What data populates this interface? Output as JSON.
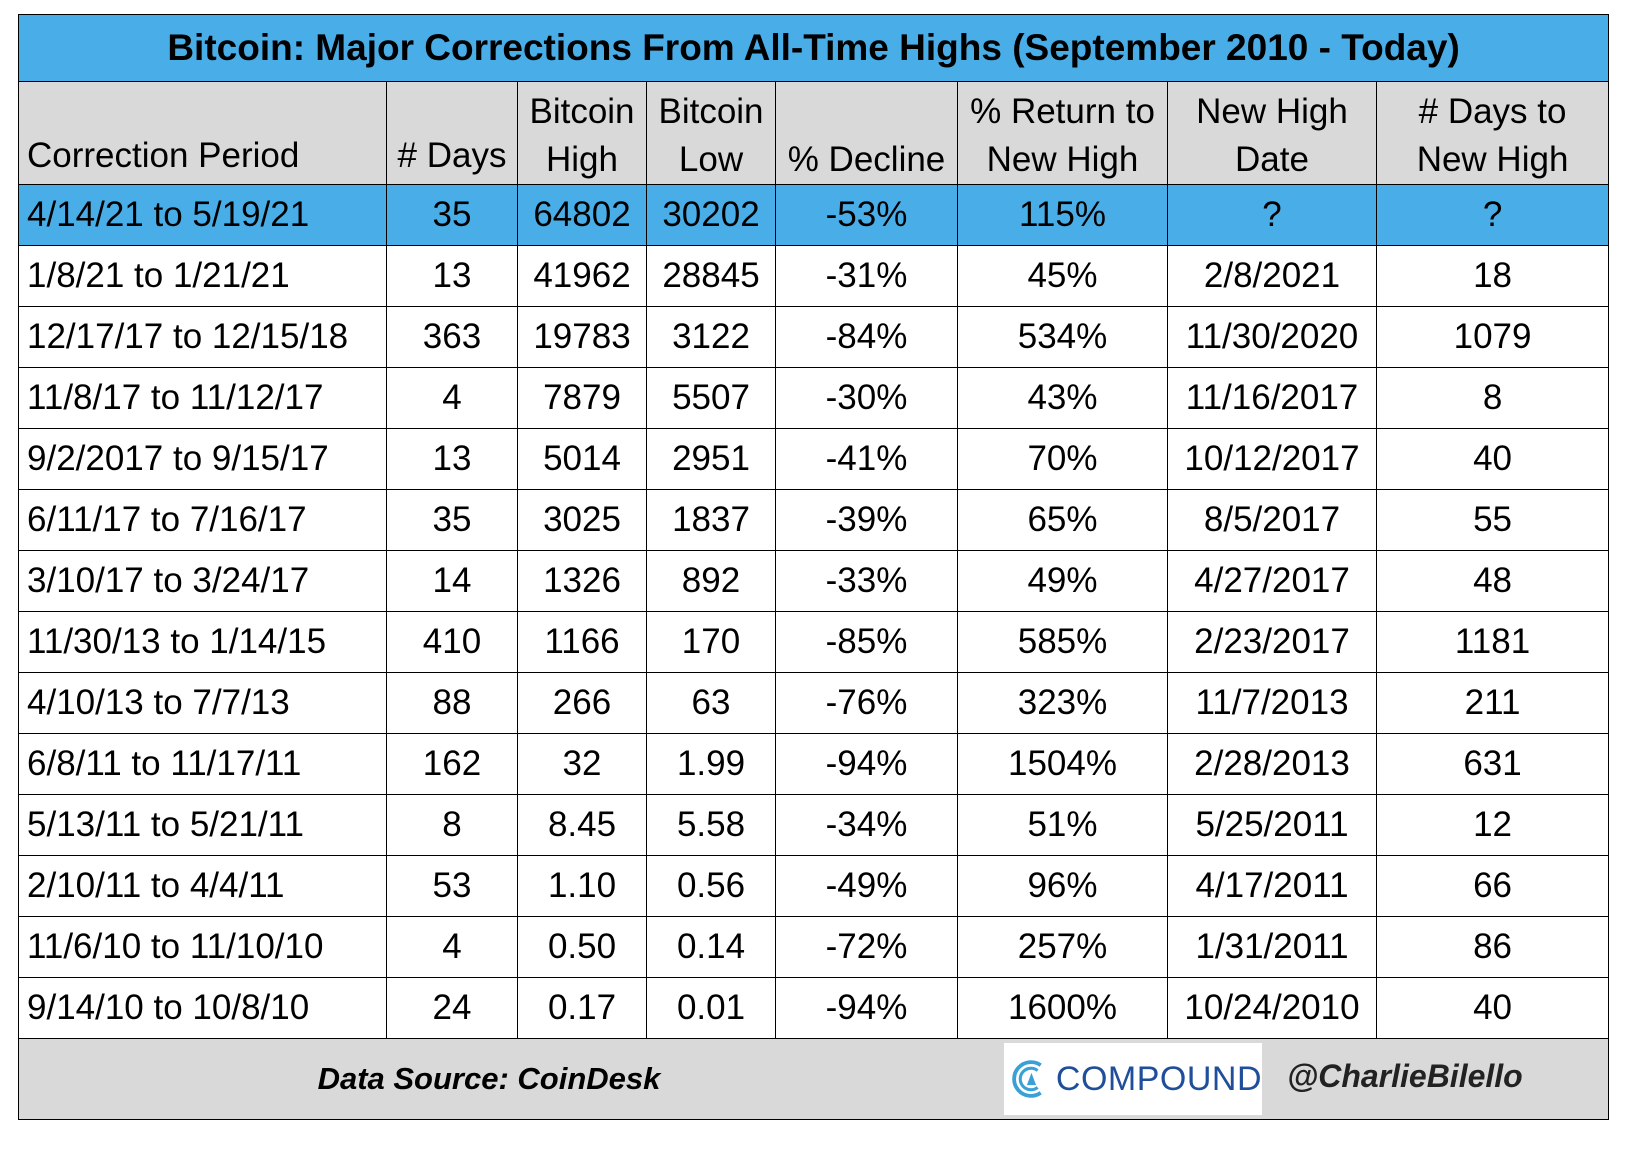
{
  "chart_data": {
    "type": "table",
    "title": "Bitcoin: Major Corrections From All-Time Highs (September 2010 - Today)",
    "columns": [
      "Correction Period",
      "# Days",
      "Bitcoin High",
      "Bitcoin Low",
      "% Decline",
      "% Return to New High",
      "New High Date",
      "# Days to New High"
    ],
    "rows": [
      [
        "4/14/21 to 5/19/21",
        "35",
        "64802",
        "30202",
        "-53%",
        "115%",
        "?",
        "?"
      ],
      [
        "1/8/21 to 1/21/21",
        "13",
        "41962",
        "28845",
        "-31%",
        "45%",
        "2/8/2021",
        "18"
      ],
      [
        "12/17/17 to 12/15/18",
        "363",
        "19783",
        "3122",
        "-84%",
        "534%",
        "11/30/2020",
        "1079"
      ],
      [
        "11/8/17 to 11/12/17",
        "4",
        "7879",
        "5507",
        "-30%",
        "43%",
        "11/16/2017",
        "8"
      ],
      [
        "9/2/2017 to 9/15/17",
        "13",
        "5014",
        "2951",
        "-41%",
        "70%",
        "10/12/2017",
        "40"
      ],
      [
        "6/11/17 to 7/16/17",
        "35",
        "3025",
        "1837",
        "-39%",
        "65%",
        "8/5/2017",
        "55"
      ],
      [
        "3/10/17 to 3/24/17",
        "14",
        "1326",
        "892",
        "-33%",
        "49%",
        "4/27/2017",
        "48"
      ],
      [
        "11/30/13 to 1/14/15",
        "410",
        "1166",
        "170",
        "-85%",
        "585%",
        "2/23/2017",
        "1181"
      ],
      [
        "4/10/13 to 7/7/13",
        "88",
        "266",
        "63",
        "-76%",
        "323%",
        "11/7/2013",
        "211"
      ],
      [
        "6/8/11 to 11/17/11",
        "162",
        "32",
        "1.99",
        "-94%",
        "1504%",
        "2/28/2013",
        "631"
      ],
      [
        "5/13/11 to 5/21/11",
        "8",
        "8.45",
        "5.58",
        "-34%",
        "51%",
        "5/25/2011",
        "12"
      ],
      [
        "2/10/11 to 4/4/11",
        "53",
        "1.10",
        "0.56",
        "-49%",
        "96%",
        "4/17/2011",
        "66"
      ],
      [
        "11/6/10 to 11/10/10",
        "4",
        "0.50",
        "0.14",
        "-72%",
        "257%",
        "1/31/2011",
        "86"
      ],
      [
        "9/14/10 to 10/8/10",
        "24",
        "0.17",
        "0.01",
        "-94%",
        "1600%",
        "10/24/2010",
        "40"
      ]
    ],
    "highlight_row": 0,
    "highlight_color": "#49ade8",
    "header_color": "#d9d9d9"
  },
  "footer": {
    "source": "Data Source: CoinDesk",
    "logo_text": "COMPOUND",
    "handle": "@CharlieBilello"
  }
}
